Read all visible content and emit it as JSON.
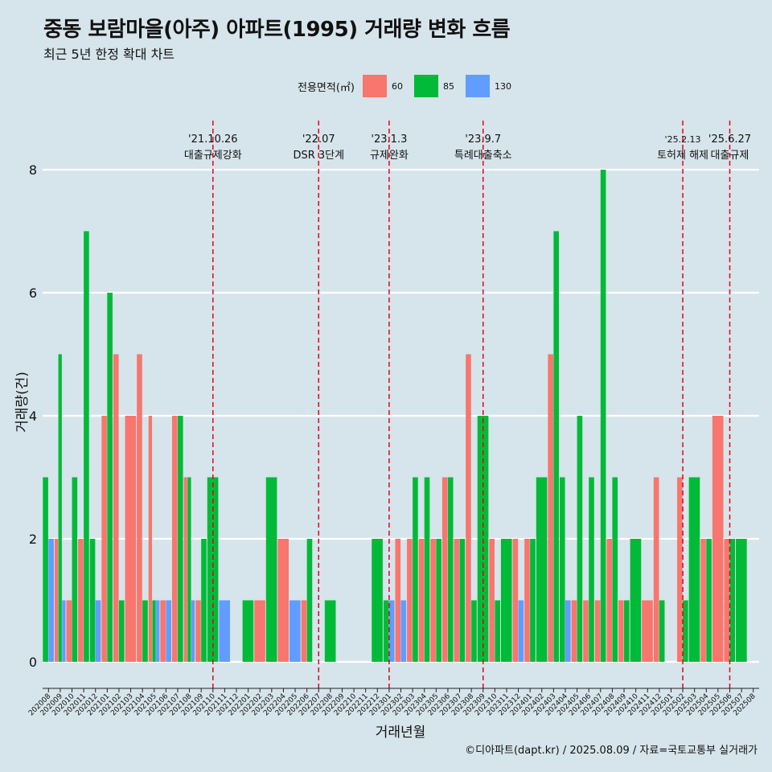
{
  "title": "중동 보람마을(아주) 아파트(1995) 거래량 변화 흐름",
  "subtitle": "최근 5년 한정 확대 차트",
  "caption": "©디아파트(dapt.kr) / 2025.08.09 / 자료=국토교통부 실거래가",
  "colors": {
    "s60": "#f8766d",
    "s85": "#00ba38",
    "s130": "#619cff",
    "event": "#e8001c",
    "grid": "#ffffff",
    "background": "#d6e4eb"
  },
  "legend": {
    "title": "전용면적(㎡)",
    "items": [
      "60",
      "85",
      "130"
    ]
  },
  "chart_data": {
    "type": "bar",
    "xlabel": "거래년월",
    "ylabel": "거래량(건)",
    "ylim": [
      0,
      8
    ],
    "yticks": [
      0,
      2,
      4,
      6,
      8
    ],
    "grid": true,
    "legend_position": "top",
    "categories": [
      "202008",
      "202009",
      "202010",
      "202011",
      "202012",
      "202101",
      "202102",
      "202103",
      "202104",
      "202105",
      "202106",
      "202107",
      "202108",
      "202109",
      "202110",
      "202111",
      "202112",
      "202201",
      "202202",
      "202203",
      "202204",
      "202205",
      "202206",
      "202207",
      "202208",
      "202209",
      "202210",
      "202211",
      "202212",
      "202301",
      "202302",
      "202303",
      "202304",
      "202305",
      "202306",
      "202307",
      "202308",
      "202309",
      "202310",
      "202311",
      "202312",
      "202401",
      "202402",
      "202403",
      "202404",
      "202405",
      "202406",
      "202407",
      "202408",
      "202409",
      "202410",
      "202411",
      "202412",
      "202501",
      "202502",
      "202503",
      "202504",
      "202505",
      "202506",
      "202507",
      "202508"
    ],
    "series": [
      {
        "name": "60",
        "values": [
          0,
          2,
          1,
          2,
          0,
          4,
          5,
          4,
          5,
          4,
          1,
          4,
          3,
          1,
          0,
          0,
          0,
          0,
          1,
          0,
          2,
          0,
          1,
          0,
          0,
          0,
          0,
          0,
          0,
          0,
          2,
          2,
          2,
          2,
          3,
          2,
          5,
          0,
          2,
          0,
          2,
          2,
          0,
          5,
          0,
          1,
          1,
          1,
          2,
          1,
          0,
          1,
          3,
          0,
          3,
          0,
          2,
          4,
          2,
          0,
          0
        ]
      },
      {
        "name": "85",
        "values": [
          3,
          5,
          3,
          7,
          2,
          6,
          1,
          0,
          1,
          1,
          0,
          4,
          3,
          2,
          3,
          0,
          0,
          1,
          0,
          3,
          0,
          0,
          2,
          0,
          1,
          0,
          0,
          0,
          2,
          1,
          0,
          3,
          3,
          2,
          3,
          2,
          1,
          4,
          1,
          2,
          0,
          2,
          3,
          7,
          3,
          4,
          3,
          8,
          3,
          1,
          2,
          0,
          1,
          0,
          1,
          3,
          2,
          0,
          2,
          2,
          0
        ]
      },
      {
        "name": "130",
        "values": [
          2,
          1,
          0,
          0,
          1,
          0,
          0,
          0,
          0,
          1,
          1,
          0,
          1,
          0,
          0,
          1,
          0,
          0,
          0,
          0,
          0,
          1,
          0,
          0,
          0,
          0,
          0,
          0,
          0,
          1,
          1,
          0,
          0,
          0,
          0,
          0,
          0,
          0,
          0,
          0,
          1,
          0,
          0,
          0,
          1,
          0,
          0,
          0,
          0,
          0,
          0,
          0,
          0,
          0,
          0,
          0,
          0,
          0,
          0,
          0,
          0
        ]
      }
    ],
    "annotations": [
      {
        "date": "'21.10.26",
        "label": "대출규제강화",
        "x": "202110"
      },
      {
        "date": "'22.07",
        "label": "DSR 3단계",
        "x": "202207"
      },
      {
        "date": "'23.1.3",
        "label": "규제완화",
        "x": "202301"
      },
      {
        "date": "'23.9.7",
        "label": "특례대출축소",
        "x": "202309"
      },
      {
        "date": "'25.2.13",
        "label": "토허제 해제",
        "x": "202502"
      },
      {
        "date": "'25.6.27",
        "label": "대출규제",
        "x": "202506"
      }
    ]
  }
}
